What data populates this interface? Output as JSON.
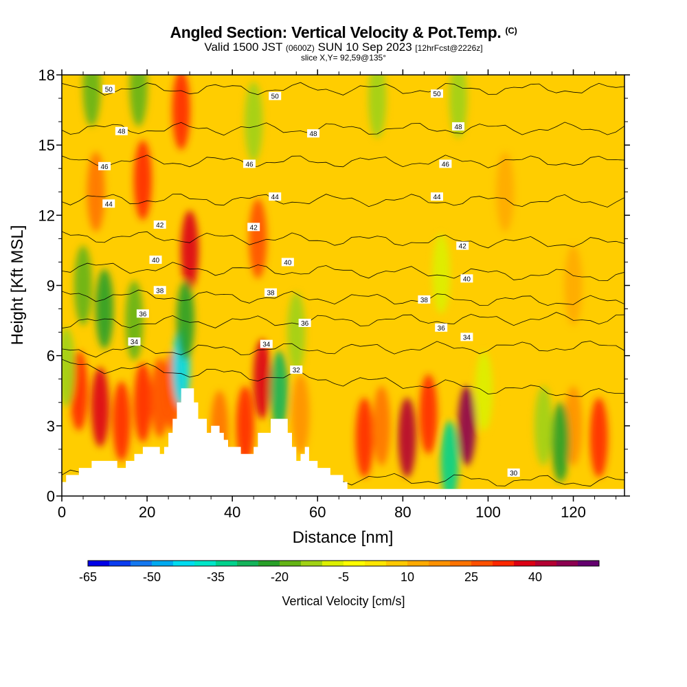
{
  "header": {
    "title": "Angled Section: Vertical Velocity & Pot.Temp.",
    "title_tag": "(C)",
    "valid_prefix": "Valid 1500 JST",
    "valid_utc": "(0600Z)",
    "valid_date": "SUN 10 Sep 2023",
    "forecast": "[12hrFcst@2226z]",
    "slice": "slice X,Y= 92,59@135°"
  },
  "chart_data": {
    "type": "heatmap",
    "xlabel": "Distance [nm]",
    "ylabel": "Height [Kft MSL]",
    "xlim": [
      0,
      132
    ],
    "ylim": [
      0,
      18
    ],
    "xticks": [
      "0",
      "20",
      "40",
      "60",
      "80",
      "100",
      "120"
    ],
    "yticks": [
      "0",
      "3",
      "6",
      "9",
      "12",
      "15",
      "18"
    ],
    "colorbar": {
      "label": "Vertical Velocity [cm/s]",
      "tick_labels": [
        "-65",
        "-50",
        "-35",
        "-20",
        "-5",
        "10",
        "25",
        "40"
      ],
      "min": -65,
      "step": 5,
      "colors": [
        "#0000e6",
        "#0a3cf0",
        "#1478f0",
        "#00aaf0",
        "#00dcf0",
        "#00e6c8",
        "#00d28c",
        "#14b45a",
        "#28a028",
        "#64b414",
        "#a0d214",
        "#dcf000",
        "#ffff00",
        "#ffe600",
        "#ffc800",
        "#ffaa00",
        "#ff9100",
        "#ff7300",
        "#ff5000",
        "#ff2800",
        "#dc0014",
        "#b40032",
        "#8c0050",
        "#64006e"
      ]
    },
    "vertical_velocity_features": [
      {
        "x": 4,
        "y": 4.5,
        "value": 30
      },
      {
        "x": 9,
        "y": 3.8,
        "value": 35
      },
      {
        "x": 14,
        "y": 3.2,
        "value": 30
      },
      {
        "x": 19,
        "y": 4.0,
        "value": 30
      },
      {
        "x": 23,
        "y": 4.2,
        "value": 25
      },
      {
        "x": 26,
        "y": 4.5,
        "value": 25
      },
      {
        "x": 28,
        "y": 16.5,
        "value": 30
      },
      {
        "x": 30,
        "y": 10.5,
        "value": 35
      },
      {
        "x": 19,
        "y": 13.5,
        "value": 30
      },
      {
        "x": 8,
        "y": 13.0,
        "value": 20
      },
      {
        "x": 37,
        "y": 2.8,
        "value": 20
      },
      {
        "x": 43,
        "y": 3.0,
        "value": 30
      },
      {
        "x": 46,
        "y": 11.0,
        "value": 25
      },
      {
        "x": 47,
        "y": 5.0,
        "value": 35
      },
      {
        "x": 56,
        "y": 3.5,
        "value": 15
      },
      {
        "x": 71,
        "y": 2.5,
        "value": 30
      },
      {
        "x": 75,
        "y": 3.0,
        "value": 20
      },
      {
        "x": 81,
        "y": 2.5,
        "value": 40
      },
      {
        "x": 86,
        "y": 3.5,
        "value": 30
      },
      {
        "x": 95,
        "y": 3.0,
        "value": 45
      },
      {
        "x": 126,
        "y": 2.5,
        "value": 30
      },
      {
        "x": 120,
        "y": 3.0,
        "value": 15
      },
      {
        "x": 10,
        "y": 8.0,
        "value": -25
      },
      {
        "x": 17,
        "y": 7.5,
        "value": -20
      },
      {
        "x": 5,
        "y": 9.0,
        "value": -20
      },
      {
        "x": 28,
        "y": 5.5,
        "value": -45
      },
      {
        "x": 29,
        "y": 7.5,
        "value": -25
      },
      {
        "x": 51,
        "y": 4.5,
        "value": -30
      },
      {
        "x": 55,
        "y": 7.0,
        "value": -15
      },
      {
        "x": 91,
        "y": 1.5,
        "value": -35
      },
      {
        "x": 117,
        "y": 2.3,
        "value": -25
      },
      {
        "x": 113,
        "y": 3.0,
        "value": -15
      },
      {
        "x": 7,
        "y": 17.5,
        "value": -20
      },
      {
        "x": 18,
        "y": 17.5,
        "value": -20
      },
      {
        "x": 45,
        "y": 16.0,
        "value": -15
      },
      {
        "x": 74,
        "y": 17.0,
        "value": -15
      },
      {
        "x": 93,
        "y": 17.0,
        "value": -15
      },
      {
        "x": 89,
        "y": 9.5,
        "value": -10
      },
      {
        "x": 99,
        "y": 4.5,
        "value": -10
      },
      {
        "x": 1,
        "y": 5.5,
        "value": -15
      },
      {
        "x": 120,
        "y": 9.0,
        "value": 10
      },
      {
        "x": 104,
        "y": 13.0,
        "value": 10
      }
    ],
    "terrain": {
      "x": [
        0,
        1,
        1,
        4,
        4,
        7,
        7,
        13,
        13,
        15,
        15,
        17,
        17,
        19,
        19,
        23,
        23,
        24,
        24,
        25,
        25,
        26,
        26,
        27,
        27,
        28,
        28,
        31,
        31,
        32,
        32,
        34,
        34,
        35,
        35,
        37,
        37,
        38,
        38,
        39,
        39,
        42,
        42,
        45,
        45,
        46,
        46,
        49,
        49,
        53,
        53,
        54,
        54,
        55,
        55,
        56,
        56,
        57,
        57,
        58,
        58,
        60,
        60,
        63,
        63,
        66,
        66,
        67,
        67,
        71,
        71,
        132
      ],
      "y": [
        0.6,
        0.6,
        0.9,
        0.9,
        1.2,
        1.2,
        1.5,
        1.5,
        1.2,
        1.2,
        1.5,
        1.5,
        1.8,
        1.8,
        2.1,
        2.1,
        1.8,
        1.8,
        2.1,
        2.1,
        2.7,
        2.7,
        3.3,
        3.3,
        4.0,
        4.0,
        4.6,
        4.6,
        4.0,
        4.0,
        3.3,
        3.3,
        2.7,
        2.7,
        3.0,
        3.0,
        2.7,
        2.7,
        2.4,
        2.4,
        2.1,
        2.1,
        1.8,
        1.8,
        2.1,
        2.1,
        2.7,
        2.7,
        3.3,
        3.3,
        2.7,
        2.7,
        2.1,
        2.1,
        1.5,
        1.5,
        1.8,
        1.8,
        2.1,
        2.1,
        1.5,
        1.5,
        1.2,
        1.2,
        0.9,
        0.9,
        0.6,
        0.6,
        0.3,
        0.3,
        0.3,
        0.3
      ]
    },
    "isentropes": [
      {
        "label": "30",
        "y_left": 0.9,
        "y_right": 0.6,
        "label_x": 106,
        "label_y": 1.0
      },
      {
        "label": "32",
        "y_left": 5.6,
        "y_right": 4.3,
        "label_x": 55,
        "label_y": 5.4
      },
      {
        "label": "34",
        "y_left": 6.2,
        "y_right": 6.4,
        "label_x": 17,
        "label_y": 6.6
      },
      {
        "label": "34",
        "y_left": 6.2,
        "y_right": 6.4,
        "label_x": 95,
        "label_y": 6.8
      },
      {
        "label": "34",
        "y_left": 6.2,
        "y_right": 6.4,
        "label_x": 48,
        "label_y": 6.5
      },
      {
        "label": "36",
        "y_left": 7.4,
        "y_right": 7.6,
        "label_x": 19,
        "label_y": 7.8
      },
      {
        "label": "36",
        "y_left": 7.4,
        "y_right": 7.6,
        "label_x": 57,
        "label_y": 7.4
      },
      {
        "label": "36",
        "y_left": 7.4,
        "y_right": 7.6,
        "label_x": 89,
        "label_y": 7.2
      },
      {
        "label": "38",
        "y_left": 8.6,
        "y_right": 8.3,
        "label_x": 23,
        "label_y": 8.8
      },
      {
        "label": "38",
        "y_left": 8.6,
        "y_right": 8.3,
        "label_x": 49,
        "label_y": 8.7
      },
      {
        "label": "38",
        "y_left": 8.6,
        "y_right": 8.3,
        "label_x": 85,
        "label_y": 8.4
      },
      {
        "label": "40",
        "y_left": 9.8,
        "y_right": 9.4,
        "label_x": 22,
        "label_y": 10.1
      },
      {
        "label": "40",
        "y_left": 9.8,
        "y_right": 9.4,
        "label_x": 53,
        "label_y": 10.0
      },
      {
        "label": "40",
        "y_left": 9.8,
        "y_right": 9.4,
        "label_x": 95,
        "label_y": 9.3
      },
      {
        "label": "42",
        "y_left": 11.1,
        "y_right": 10.8,
        "label_x": 23,
        "label_y": 11.6
      },
      {
        "label": "42",
        "y_left": 11.1,
        "y_right": 10.8,
        "label_x": 45,
        "label_y": 11.5
      },
      {
        "label": "42",
        "y_left": 11.1,
        "y_right": 10.8,
        "label_x": 94,
        "label_y": 10.7
      },
      {
        "label": "44",
        "y_left": 12.7,
        "y_right": 12.6,
        "label_x": 11,
        "label_y": 12.5
      },
      {
        "label": "44",
        "y_left": 12.7,
        "y_right": 12.6,
        "label_x": 50,
        "label_y": 12.8
      },
      {
        "label": "44",
        "y_left": 12.7,
        "y_right": 12.6,
        "label_x": 88,
        "label_y": 12.8
      },
      {
        "label": "46",
        "y_left": 14.3,
        "y_right": 14.3,
        "label_x": 10,
        "label_y": 14.1
      },
      {
        "label": "46",
        "y_left": 14.3,
        "y_right": 14.3,
        "label_x": 44,
        "label_y": 14.2
      },
      {
        "label": "46",
        "y_left": 14.3,
        "y_right": 14.3,
        "label_x": 90,
        "label_y": 14.2
      },
      {
        "label": "48",
        "y_left": 15.7,
        "y_right": 15.7,
        "label_x": 14,
        "label_y": 15.6
      },
      {
        "label": "48",
        "y_left": 15.7,
        "y_right": 15.7,
        "label_x": 59,
        "label_y": 15.5
      },
      {
        "label": "48",
        "y_left": 15.7,
        "y_right": 15.7,
        "label_x": 93,
        "label_y": 15.8
      },
      {
        "label": "50",
        "y_left": 17.4,
        "y_right": 17.4,
        "label_x": 11,
        "label_y": 17.4
      },
      {
        "label": "50",
        "y_left": 17.4,
        "y_right": 17.4,
        "label_x": 50,
        "label_y": 17.1
      },
      {
        "label": "50",
        "y_left": 17.4,
        "y_right": 17.4,
        "label_x": 88,
        "label_y": 17.2
      }
    ]
  }
}
